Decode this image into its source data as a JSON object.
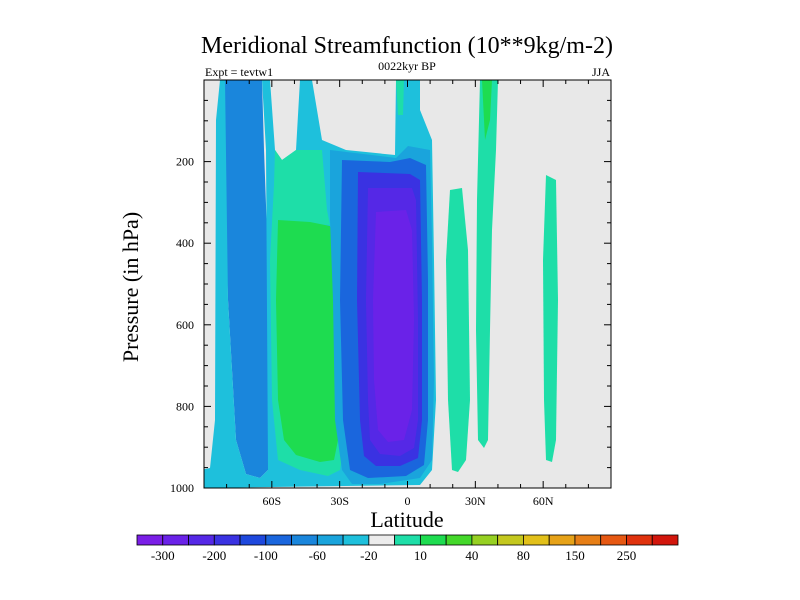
{
  "chart_data": {
    "type": "filled-contour",
    "title": "Meridional Streamfunction (10**9kg/m-2)",
    "subtitle_left": "Expt = tevtw1",
    "subtitle_center": "0022kyr BP",
    "subtitle_right": "JJA",
    "xlabel": "Latitude",
    "ylabel": "Pressure (in hPa)",
    "xlim": [
      -90,
      90
    ],
    "ylim": [
      1000,
      0
    ],
    "xticks": [
      {
        "value": -60,
        "label": "60S"
      },
      {
        "value": -30,
        "label": "30S"
      },
      {
        "value": 0,
        "label": "0"
      },
      {
        "value": 30,
        "label": "30N"
      },
      {
        "value": 60,
        "label": "60N"
      }
    ],
    "yticks": [
      {
        "value": 200,
        "label": "200"
      },
      {
        "value": 400,
        "label": "400"
      },
      {
        "value": 600,
        "label": "600"
      },
      {
        "value": 800,
        "label": "800"
      },
      {
        "value": 1000,
        "label": "1000"
      }
    ],
    "colorbar": {
      "colors": [
        "#7a1ee6",
        "#6a22e8",
        "#5528e6",
        "#3a32e2",
        "#1e48dd",
        "#1a66dd",
        "#1a86dc",
        "#1aa4dc",
        "#1ec0dc",
        "#ececec",
        "#1edea8",
        "#1edc50",
        "#44d82a",
        "#96d022",
        "#c4c81e",
        "#e2c01a",
        "#e6a218",
        "#e67e16",
        "#e65812",
        "#e0320e",
        "#d2160c"
      ],
      "labels": [
        "-300",
        "-200",
        "-100",
        "-60",
        "-20",
        "10",
        "40",
        "80",
        "150",
        "250"
      ]
    }
  }
}
